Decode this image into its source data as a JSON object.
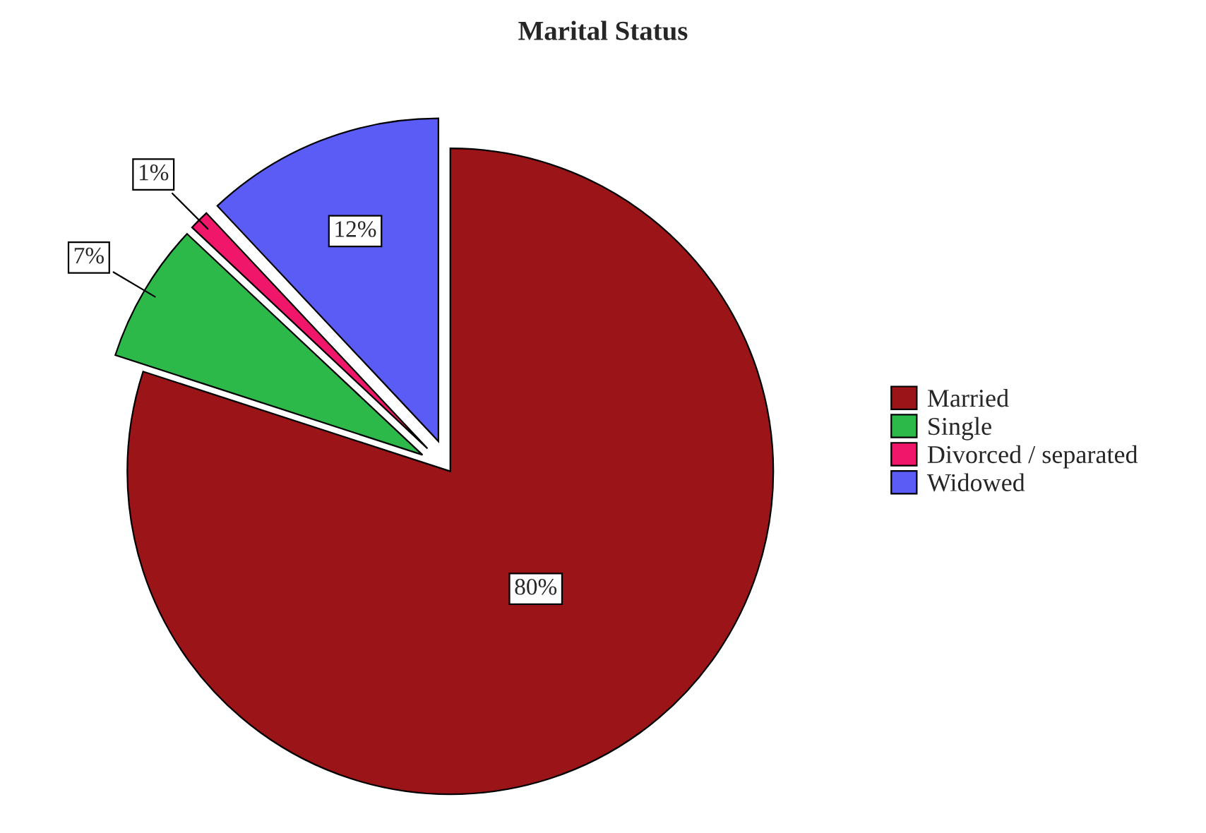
{
  "chart_data": {
    "type": "pie",
    "title": "Marital Status",
    "categories": [
      "Married",
      "Single",
      "Divorced / separated",
      "Widowed"
    ],
    "values": [
      80,
      7,
      1,
      12
    ],
    "colors": [
      "#9b1518",
      "#2db84a",
      "#f0166a",
      "#5a5cf5"
    ],
    "value_labels": [
      "80%",
      "7%",
      "1%",
      "12%"
    ],
    "legend": "right"
  }
}
